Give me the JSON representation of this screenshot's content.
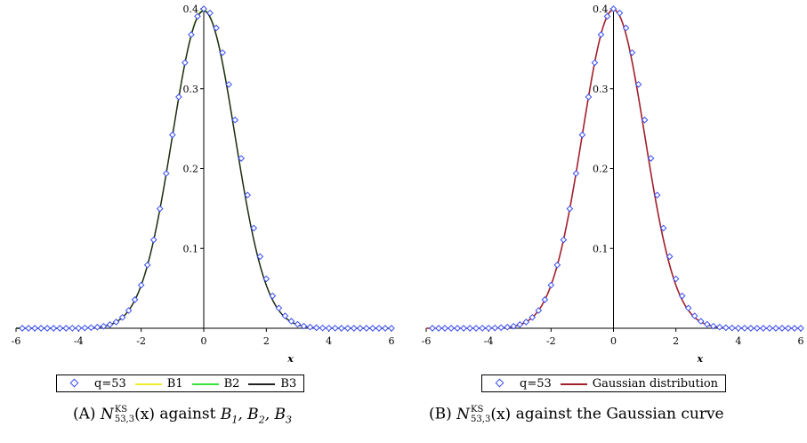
{
  "chart_data": [
    {
      "type": "line",
      "panel": "A",
      "xlabel": "x",
      "xlim": [
        -6,
        6
      ],
      "ylim": [
        0,
        0.4
      ],
      "xticks": [
        -6,
        -4,
        -2,
        0,
        2,
        4,
        6
      ],
      "yticks": [
        0.1,
        0.2,
        0.3,
        0.4
      ],
      "series": [
        {
          "name": "q=53",
          "kind": "points",
          "color": "#3b4ff0",
          "x": [
            -5.8,
            -5.6,
            -5.4,
            -5.2,
            -5.0,
            -4.8,
            -4.6,
            -4.4,
            -4.2,
            -4.0,
            -3.8,
            -3.6,
            -3.4,
            -3.2,
            -3.0,
            -2.8,
            -2.6,
            -2.4,
            -2.2,
            -2.0,
            -1.8,
            -1.6,
            -1.4,
            -1.2,
            -1.0,
            -0.8,
            -0.6,
            -0.4,
            -0.2,
            0.0,
            0.2,
            0.4,
            0.6,
            0.8,
            1.0,
            1.2,
            1.4,
            1.6,
            1.8,
            2.0,
            2.2,
            2.4,
            2.6,
            2.8,
            3.0,
            3.2,
            3.4,
            3.6,
            3.8,
            4.0,
            4.2,
            4.4,
            4.6,
            4.8,
            5.0,
            5.2,
            5.4,
            5.6,
            5.8,
            6.0
          ],
          "y": [
            0.0,
            0.0,
            0.0,
            0.0,
            0.0,
            0.0,
            0.0,
            0.0,
            0.0001,
            0.0002,
            0.0004,
            0.0008,
            0.0014,
            0.0025,
            0.0046,
            0.0078,
            0.0136,
            0.0222,
            0.0358,
            0.054,
            0.0792,
            0.1107,
            0.1497,
            0.1939,
            0.2422,
            0.2897,
            0.3326,
            0.3678,
            0.3907,
            0.4,
            0.3949,
            0.3762,
            0.3452,
            0.3054,
            0.2609,
            0.2128,
            0.1668,
            0.1254,
            0.0898,
            0.0619,
            0.0405,
            0.0253,
            0.0155,
            0.0088,
            0.005,
            0.0026,
            0.0014,
            0.0007,
            0.0003,
            0.0002,
            0.0001,
            0.0,
            0.0,
            0.0,
            0.0,
            0.0,
            0.0,
            0.0,
            0.0,
            0.0
          ]
        },
        {
          "name": "B1",
          "kind": "curve",
          "color": "#f2ee2e"
        },
        {
          "name": "B2",
          "kind": "curve",
          "color": "#3be23b"
        },
        {
          "name": "B3",
          "kind": "curve",
          "color": "#222222"
        }
      ],
      "caption": {
        "prefix": "(A)",
        "text": "against B1, B2, B3"
      }
    },
    {
      "type": "line",
      "panel": "B",
      "xlabel": "x",
      "xlim": [
        -6,
        6
      ],
      "ylim": [
        0,
        0.4
      ],
      "xticks": [
        -6,
        -4,
        -2,
        0,
        2,
        4,
        6
      ],
      "yticks": [
        0.1,
        0.2,
        0.3,
        0.4
      ],
      "series": [
        {
          "name": "q=53",
          "kind": "points",
          "color": "#3b4ff0"
        },
        {
          "name": "Gaussian distribution",
          "kind": "curve",
          "color": "#a0202c"
        }
      ],
      "caption": {
        "prefix": "(B)",
        "text": "against the Gaussian curve"
      }
    }
  ],
  "captions": {
    "a_prefix": "(A)",
    "a_text": "against",
    "a_tail": "B",
    "b_prefix": "(B)",
    "b_text": "against the Gaussian curve",
    "func_letter": "N",
    "func_sup": "KS",
    "func_sub": "53,3",
    "func_arg": "(x)"
  },
  "legend_a": {
    "s1": "q=53",
    "s2": "B1",
    "s3": "B2",
    "s4": "B3"
  },
  "legend_b": {
    "s1": "q=53",
    "s2": "Gaussian distribution"
  },
  "colors": {
    "points": "#3b4ff0",
    "b1": "#f2ee2e",
    "b2": "#3be23b",
    "b3": "#222222",
    "gauss": "#a0202c"
  }
}
